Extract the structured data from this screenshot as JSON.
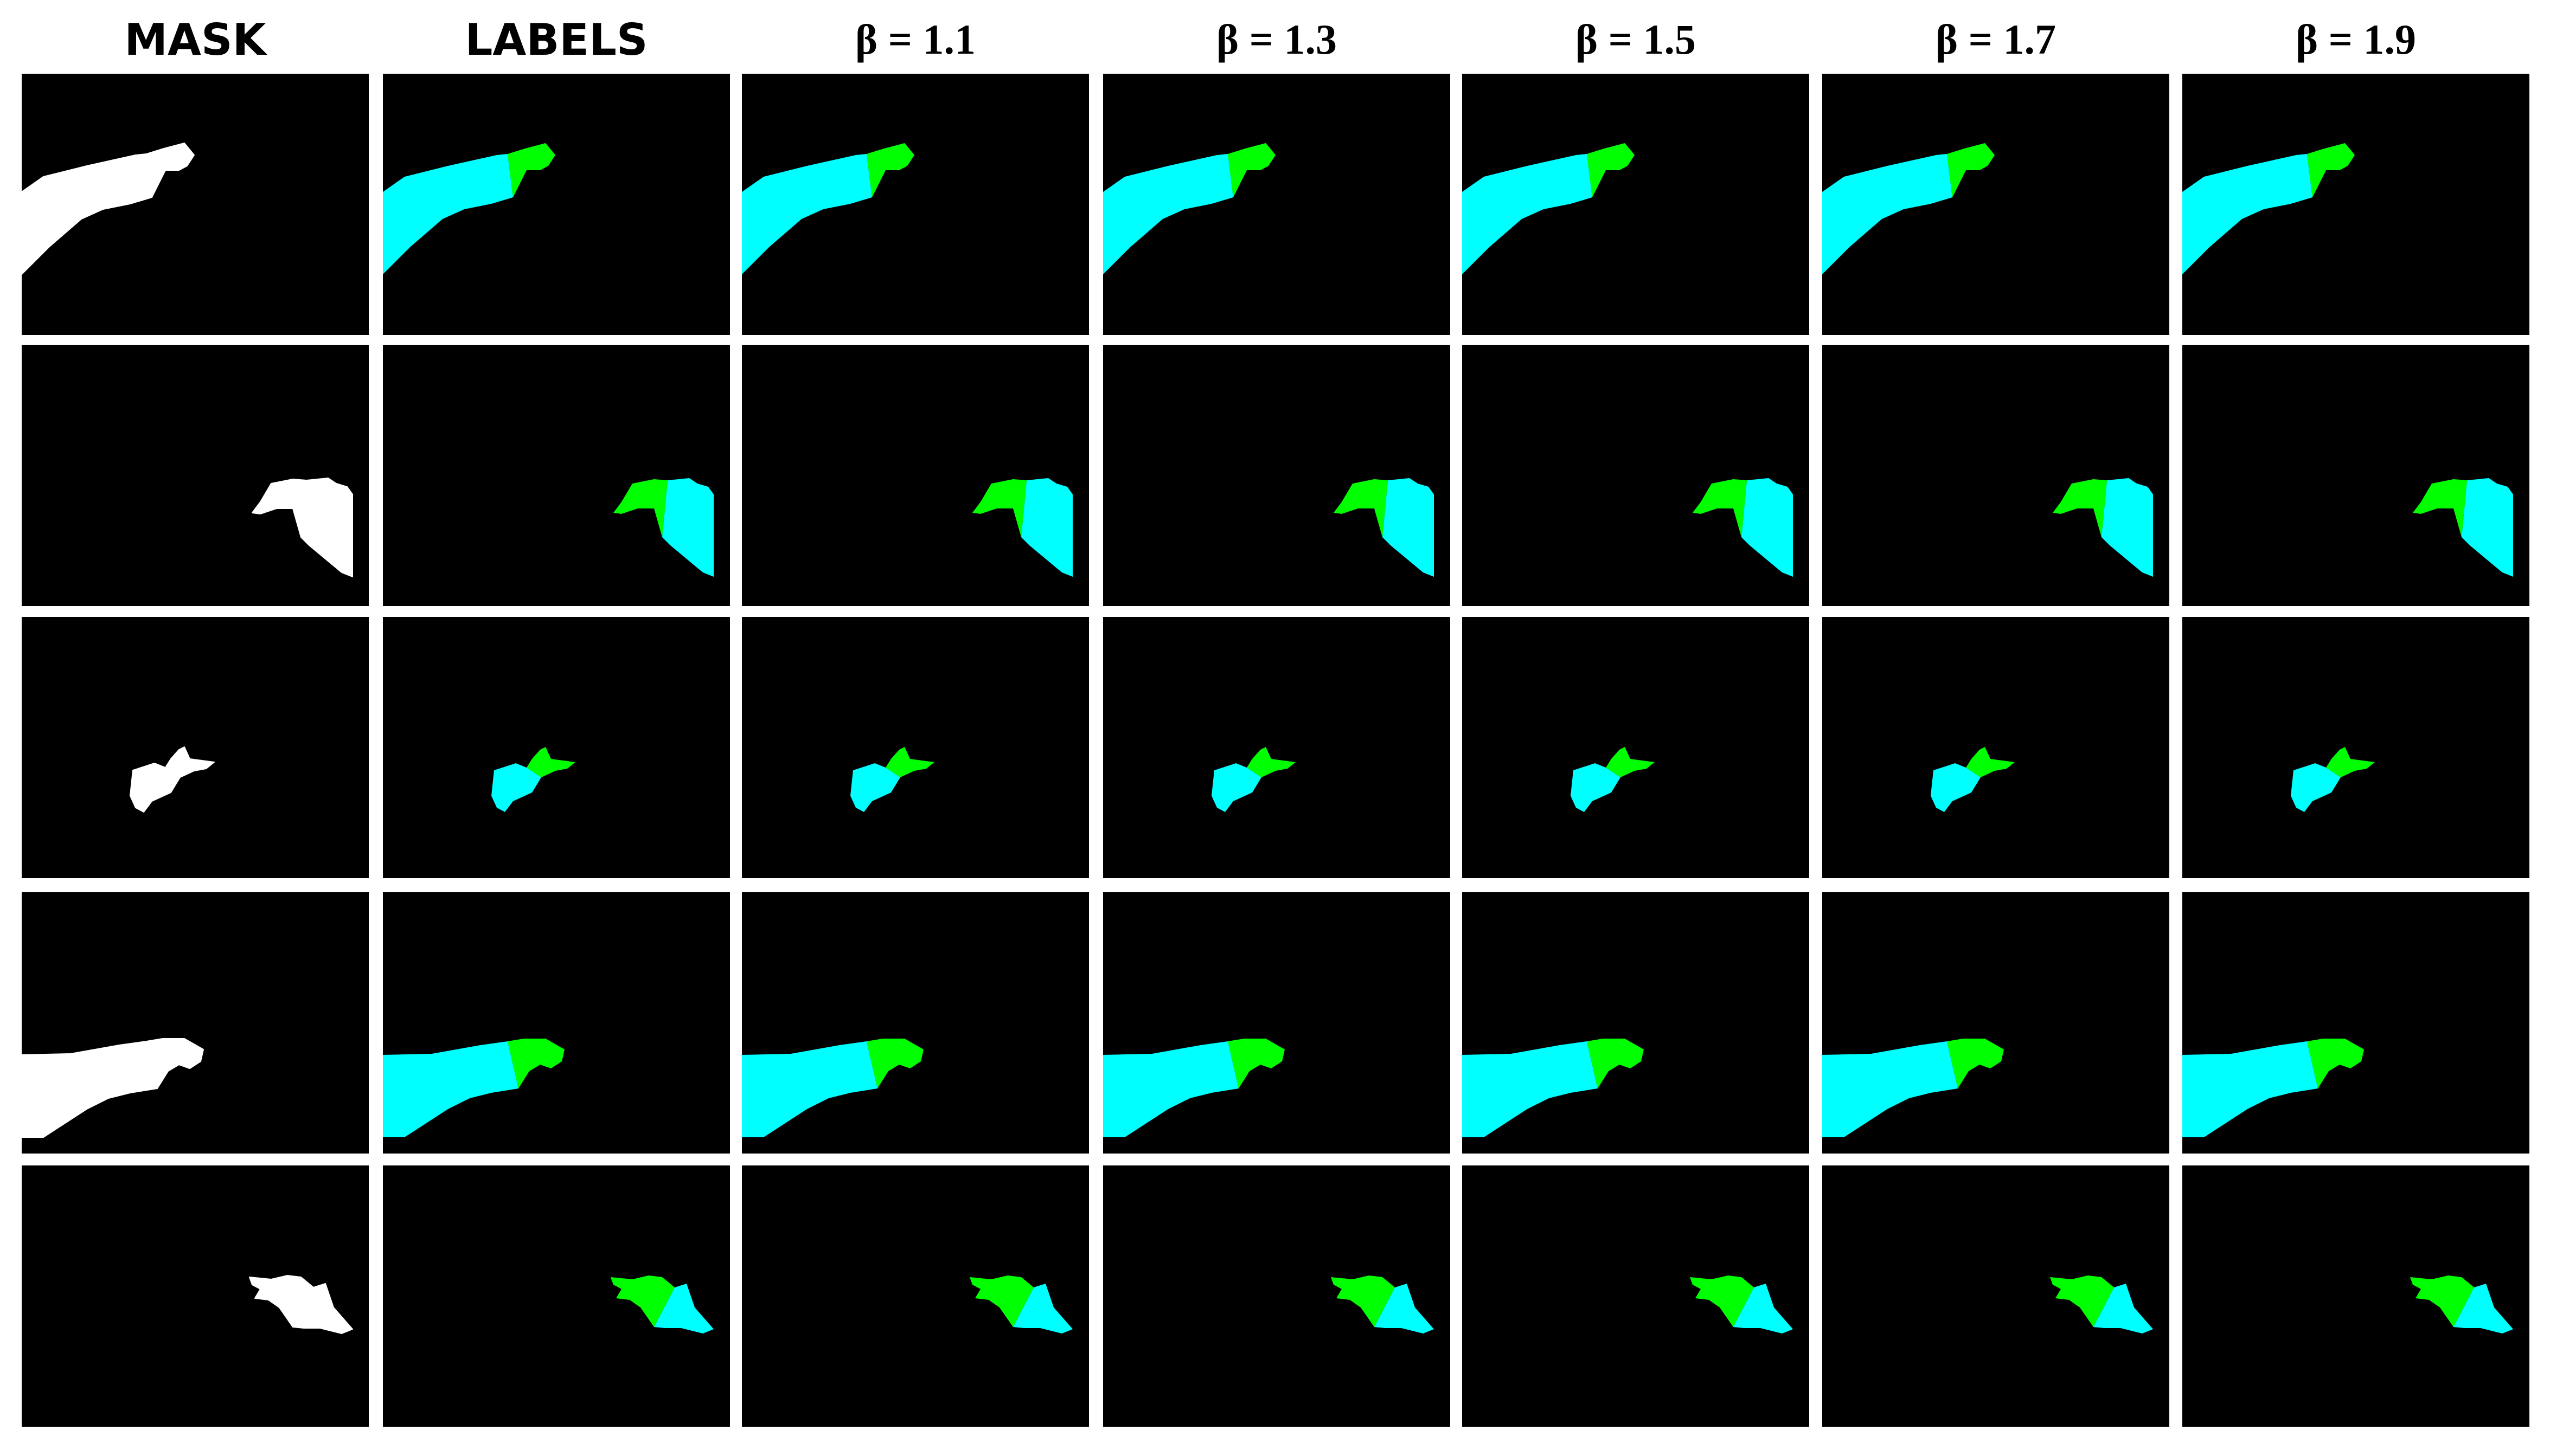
{
  "headers": [
    {
      "label": "MASK",
      "style": "sans"
    },
    {
      "label": "LABELS",
      "style": "sans"
    },
    {
      "label": "β = 1.1",
      "style": "serif"
    },
    {
      "label": "β = 1.3",
      "style": "serif"
    },
    {
      "label": "β = 1.5",
      "style": "serif"
    },
    {
      "label": "β = 1.7",
      "style": "serif"
    },
    {
      "label": "β = 1.9",
      "style": "serif"
    }
  ],
  "rows": 5,
  "colors": {
    "background": "#000000",
    "mask": "#ffffff",
    "proximal": "#00ffff",
    "distal": "#00ff00"
  }
}
